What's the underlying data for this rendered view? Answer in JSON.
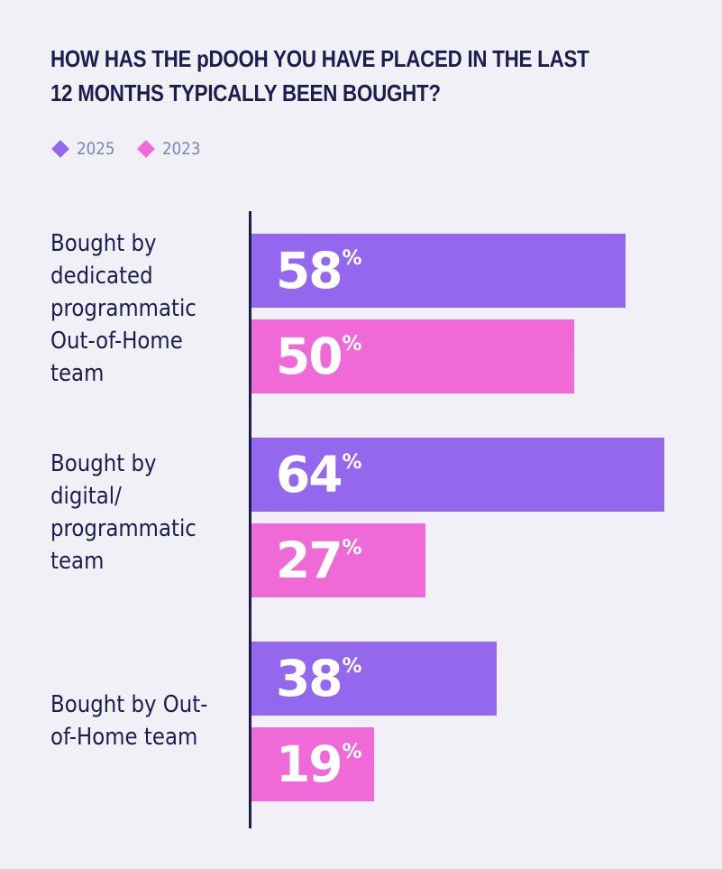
{
  "chart_data": {
    "type": "bar",
    "orientation": "horizontal",
    "title": "HOW HAS THE pDOOH YOU HAVE PLACED IN THE LAST 12 MONTHS TYPICALLY BEEN BOUGHT?",
    "categories": [
      "Bought by dedicated programmatic Out-of-Home team",
      "Bought by digital/ programmatic team",
      "Bought by Out-of-Home team"
    ],
    "series": [
      {
        "name": "2025",
        "color": "#9467ef",
        "values": [
          58,
          64,
          38
        ]
      },
      {
        "name": "2023",
        "color": "#ef6ad6",
        "values": [
          50,
          27,
          19
        ]
      }
    ],
    "unit": "%",
    "xlim": [
      0,
      64
    ],
    "legend_position": "top-left",
    "grid": false
  },
  "text": {
    "title": "HOW HAS THE pDOOH YOU HAVE PLACED IN THE LAST 12 MONTHS TYPICALLY BEEN BOUGHT?",
    "percent_symbol": "%",
    "category_labels": [
      "Bought by\ndedicated\nprogrammatic\nOut-of-Home\nteam",
      "Bought by\ndigital/\nprogrammatic\nteam",
      "Bought by Out-\nof-Home team"
    ]
  },
  "colors": {
    "background": "#f2f0f7",
    "title": "#1b1d4f",
    "axis": "#1b1d4f",
    "legend_text": "#7a86b4",
    "series_2025": "#9467ef",
    "series_2023": "#ef6ad6"
  }
}
